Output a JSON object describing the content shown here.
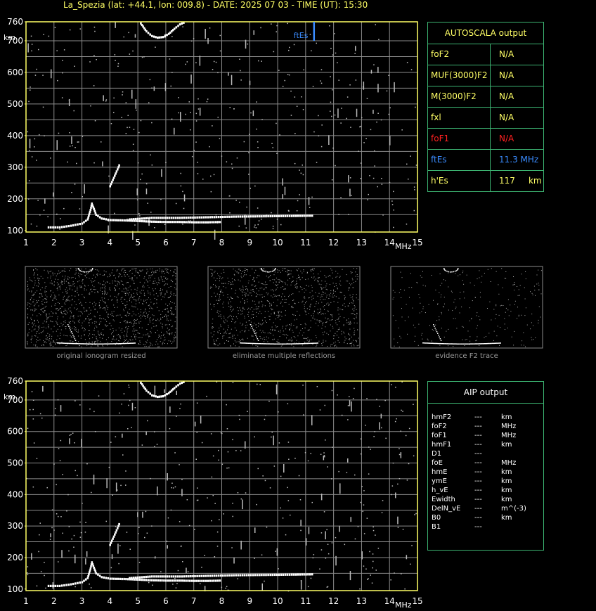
{
  "header": {
    "title": "La_Spezia (lat: +44.1, lon: 009.8) - DATE: 2025 07 03 - TIME (UT): 15:30"
  },
  "autoscala": {
    "title": "AUTOSCALA output",
    "rows": [
      {
        "name": "foF2",
        "value": "N/A",
        "color": "#ffff66"
      },
      {
        "name": "MUF(3000)F2",
        "value": "N/A",
        "color": "#ffff66"
      },
      {
        "name": "M(3000)F2",
        "value": "N/A",
        "color": "#ffff66"
      },
      {
        "name": "fxl",
        "value": "N/A",
        "color": "#ffff66"
      },
      {
        "name": "foF1",
        "value": "N/A",
        "color": "#ff2020"
      },
      {
        "name": "ftEs",
        "value": "11.3 MHz",
        "color": "#3a8cff"
      },
      {
        "name": "h'Es",
        "value": "117     km",
        "color": "#ffff66"
      }
    ]
  },
  "aip": {
    "title": "AIP output",
    "rows": [
      {
        "name": "hmF2",
        "val": "---",
        "unit": "km"
      },
      {
        "name": "foF2",
        "val": "---",
        "unit": "MHz"
      },
      {
        "name": "foF1",
        "val": "---",
        "unit": "MHz"
      },
      {
        "name": "hmF1",
        "val": "---",
        "unit": "km"
      },
      {
        "name": "D1",
        "val": "---",
        "unit": ""
      },
      {
        "name": "foE",
        "val": "---",
        "unit": "MHz"
      },
      {
        "name": "hmE",
        "val": "---",
        "unit": "km"
      },
      {
        "name": "ymE",
        "val": "---",
        "unit": "km"
      },
      {
        "name": "h_vE",
        "val": "---",
        "unit": "km"
      },
      {
        "name": "Ewidth",
        "val": "---",
        "unit": "km"
      },
      {
        "name": "DelN_vE",
        "val": "---",
        "unit": "m^(-3)"
      },
      {
        "name": "B0",
        "val": "---",
        "unit": "km"
      },
      {
        "name": "B1",
        "val": "---",
        "unit": ""
      }
    ]
  },
  "captions": [
    "original ionogram resized",
    "eliminate multiple reflections",
    "evidence F2 trace"
  ],
  "colors": {
    "axis": "#ffff66",
    "grid": "#8c8c8c",
    "panel_border": "#3cb371",
    "es_marker": "#3a8cff",
    "trace": "#ffffff"
  },
  "chart_data": [
    {
      "type": "scatter",
      "title": "",
      "xlabel": "MHz",
      "ylabel": "km",
      "xlim": [
        1,
        15
      ],
      "ylim": [
        95,
        760
      ],
      "xticks": [
        "1",
        "2",
        "3",
        "4",
        "5",
        "6",
        "7",
        "8",
        "9",
        "10",
        "11",
        "12",
        "13",
        "14",
        "15"
      ],
      "yticks": [
        "100",
        "200",
        "300",
        "400",
        "500",
        "600",
        "700",
        "760"
      ],
      "grid": true,
      "ftEs_marker": {
        "label": "ftEs",
        "x": 11.3,
        "y_range": [
          700,
          760
        ]
      },
      "traces": [
        {
          "name": "",
          "points": [
            [
              1.8,
              110
            ],
            [
              2.2,
              110
            ],
            [
              2.6,
              115
            ],
            [
              3.0,
              122
            ],
            [
              3.2,
              135
            ],
            [
              3.3,
              165
            ],
            [
              3.35,
              185
            ],
            [
              3.5,
              150
            ],
            [
              3.7,
              138
            ],
            [
              4.0,
              133
            ],
            [
              4.5,
              132
            ],
            [
              5.0,
              130
            ],
            [
              5.5,
              128
            ],
            [
              6.0,
              127
            ],
            [
              6.5,
              127
            ],
            [
              7.0,
              126
            ],
            [
              7.5,
              126
            ],
            [
              8.0,
              127
            ]
          ]
        },
        {
          "name": "",
          "points": [
            [
              4.0,
              240
            ],
            [
              4.1,
              260
            ],
            [
              4.2,
              280
            ],
            [
              4.3,
              300
            ],
            [
              4.35,
              312
            ]
          ]
        },
        {
          "name": "",
          "points": [
            [
              4.7,
              135
            ],
            [
              5.5,
              140
            ],
            [
              6.5,
              140
            ],
            [
              7.5,
              142
            ],
            [
              8.5,
              144
            ],
            [
              9.5,
              145
            ],
            [
              10.5,
              146
            ],
            [
              11.3,
              147
            ]
          ]
        },
        {
          "name": "",
          "points": [
            [
              5.1,
              755
            ],
            [
              5.3,
              730
            ],
            [
              5.5,
              715
            ],
            [
              5.7,
              710
            ],
            [
              5.9,
              712
            ],
            [
              6.1,
              722
            ],
            [
              6.3,
              738
            ],
            [
              6.5,
              752
            ],
            [
              6.7,
              760
            ]
          ]
        }
      ]
    },
    {
      "type": "scatter",
      "title": "",
      "xlabel": "MHz",
      "ylabel": "km",
      "xlim": [
        1,
        15
      ],
      "ylim": [
        95,
        760
      ],
      "xticks": [
        "1",
        "2",
        "3",
        "4",
        "5",
        "6",
        "7",
        "8",
        "9",
        "10",
        "11",
        "12",
        "13",
        "14",
        "15"
      ],
      "yticks": [
        "100",
        "200",
        "300",
        "400",
        "500",
        "600",
        "700",
        "760"
      ],
      "grid": true,
      "traces": [
        {
          "name": "",
          "points": [
            [
              1.8,
              110
            ],
            [
              2.2,
              110
            ],
            [
              2.6,
              115
            ],
            [
              3.0,
              122
            ],
            [
              3.2,
              135
            ],
            [
              3.3,
              165
            ],
            [
              3.35,
              185
            ],
            [
              3.5,
              150
            ],
            [
              3.7,
              138
            ],
            [
              4.0,
              133
            ],
            [
              4.5,
              132
            ],
            [
              5.0,
              130
            ],
            [
              5.5,
              128
            ],
            [
              6.0,
              127
            ],
            [
              6.5,
              127
            ],
            [
              7.0,
              126
            ],
            [
              7.5,
              126
            ],
            [
              8.0,
              127
            ]
          ]
        },
        {
          "name": "",
          "points": [
            [
              4.0,
              240
            ],
            [
              4.1,
              260
            ],
            [
              4.2,
              280
            ],
            [
              4.3,
              300
            ],
            [
              4.35,
              312
            ]
          ]
        },
        {
          "name": "",
          "points": [
            [
              4.7,
              135
            ],
            [
              5.5,
              140
            ],
            [
              6.5,
              140
            ],
            [
              7.5,
              142
            ],
            [
              8.5,
              144
            ],
            [
              9.5,
              145
            ],
            [
              10.5,
              146
            ],
            [
              11.3,
              147
            ]
          ]
        },
        {
          "name": "",
          "points": [
            [
              5.1,
              755
            ],
            [
              5.3,
              730
            ],
            [
              5.5,
              715
            ],
            [
              5.7,
              710
            ],
            [
              5.9,
              712
            ],
            [
              6.1,
              722
            ],
            [
              6.3,
              738
            ],
            [
              6.5,
              752
            ],
            [
              6.7,
              760
            ]
          ]
        }
      ]
    }
  ]
}
